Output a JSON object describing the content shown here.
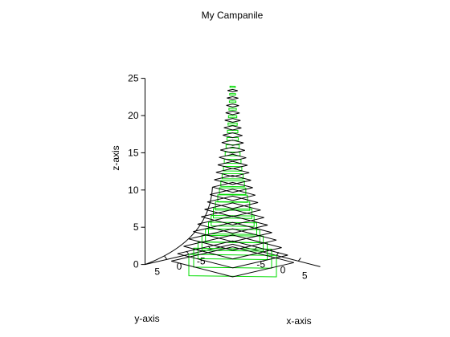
{
  "chart_data": {
    "type": "3d-wireframe",
    "title": "My Campanile",
    "xlabel": "x-axis",
    "ylabel": "y-axis",
    "zlabel": "z-axis",
    "xlim": [
      -10,
      10
    ],
    "ylim": [
      -10,
      10
    ],
    "zlim": [
      0,
      25
    ],
    "x_ticks": [
      "-5",
      "0",
      "5"
    ],
    "y_ticks": [
      "5",
      "0",
      "-5"
    ],
    "z_ticks": [
      "0",
      "5",
      "10",
      "15",
      "20",
      "25"
    ],
    "grid": false,
    "series": [
      {
        "color": "#00dd00",
        "shape": "square",
        "levels": [
          {
            "z": 0.0,
            "half_width": 10.0
          },
          {
            "z": 1.0,
            "half_width": 8.9
          },
          {
            "z": 2.0,
            "half_width": 7.9
          },
          {
            "z": 3.0,
            "half_width": 7.0
          },
          {
            "z": 4.0,
            "half_width": 6.2
          },
          {
            "z": 5.0,
            "half_width": 5.5
          },
          {
            "z": 6.0,
            "half_width": 4.9
          },
          {
            "z": 7.0,
            "half_width": 4.4
          },
          {
            "z": 8.0,
            "half_width": 3.9
          },
          {
            "z": 9.0,
            "half_width": 3.4
          },
          {
            "z": 10.0,
            "half_width": 3.0
          },
          {
            "z": 11.0,
            "half_width": 2.7
          },
          {
            "z": 12.0,
            "half_width": 2.4
          },
          {
            "z": 13.0,
            "half_width": 2.1
          },
          {
            "z": 14.0,
            "half_width": 1.9
          },
          {
            "z": 15.0,
            "half_width": 1.7
          },
          {
            "z": 16.0,
            "half_width": 1.5
          },
          {
            "z": 17.0,
            "half_width": 1.3
          },
          {
            "z": 18.0,
            "half_width": 1.2
          },
          {
            "z": 19.0,
            "half_width": 1.05
          },
          {
            "z": 20.0,
            "half_width": 0.95
          },
          {
            "z": 21.0,
            "half_width": 0.85
          },
          {
            "z": 22.0,
            "half_width": 0.75
          },
          {
            "z": 23.0,
            "half_width": 0.68
          },
          {
            "z": 24.0,
            "half_width": 0.6
          }
        ]
      },
      {
        "color": "#000000",
        "shape": "square-rotated",
        "levels": [
          {
            "z": 0.5,
            "half_width": 7.0
          },
          {
            "z": 1.5,
            "half_width": 6.3
          },
          {
            "z": 2.5,
            "half_width": 5.6
          },
          {
            "z": 3.5,
            "half_width": 5.0
          },
          {
            "z": 4.5,
            "half_width": 4.5
          },
          {
            "z": 5.5,
            "half_width": 4.0
          },
          {
            "z": 6.5,
            "half_width": 3.6
          },
          {
            "z": 7.5,
            "half_width": 3.2
          },
          {
            "z": 8.5,
            "half_width": 2.9
          },
          {
            "z": 9.5,
            "half_width": 2.6
          },
          {
            "z": 10.5,
            "half_width": 2.3
          },
          {
            "z": 11.5,
            "half_width": 2.1
          },
          {
            "z": 12.5,
            "half_width": 1.9
          },
          {
            "z": 13.5,
            "half_width": 1.7
          },
          {
            "z": 14.5,
            "half_width": 1.55
          },
          {
            "z": 15.5,
            "half_width": 1.4
          },
          {
            "z": 16.5,
            "half_width": 1.25
          },
          {
            "z": 17.5,
            "half_width": 1.12
          },
          {
            "z": 18.5,
            "half_width": 1.0
          },
          {
            "z": 19.5,
            "half_width": 0.9
          },
          {
            "z": 20.5,
            "half_width": 0.8
          },
          {
            "z": 21.5,
            "half_width": 0.72
          },
          {
            "z": 22.5,
            "half_width": 0.65
          },
          {
            "z": 23.5,
            "half_width": 0.58
          }
        ]
      }
    ],
    "curve": {
      "color": "#000000",
      "ends_at": [
        10,
        -10,
        0
      ],
      "starts_at_level": 10
    }
  }
}
